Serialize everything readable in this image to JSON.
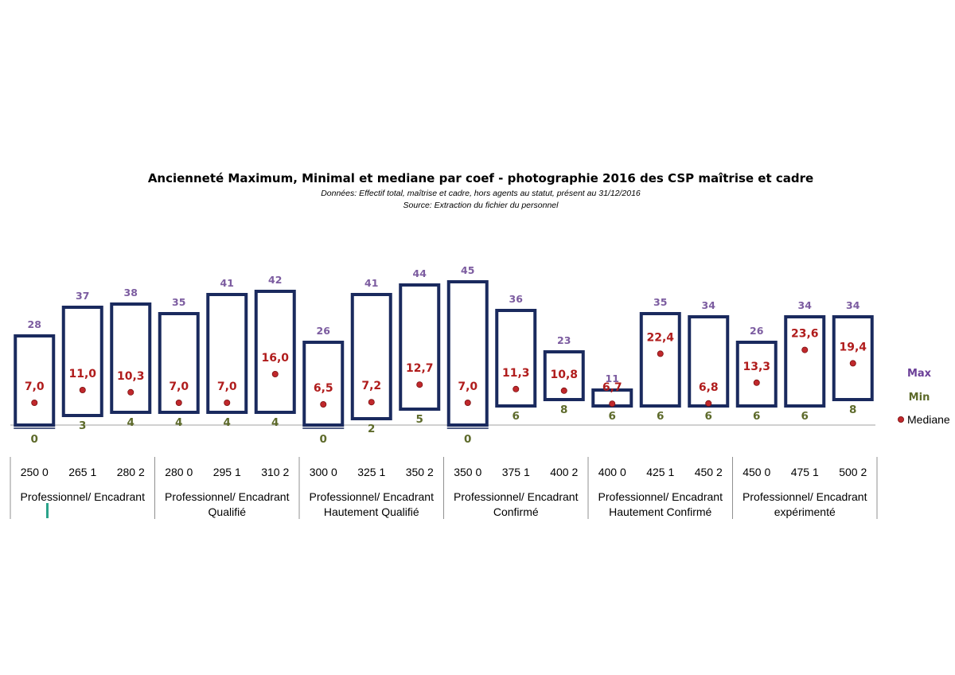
{
  "chart_data": {
    "type": "box",
    "title": "Ancienneté Maximum, Minimal et mediane par coef - photographie 2016 des CSP maîtrise et cadre",
    "subtitle_lines": [
      "Données: Effectif  total, maîtrise et cadre, hors agents au statut, présent au 31/12/2016",
      "Source: Extraction du fichier du personnel"
    ],
    "categories": [
      "250 0",
      "265 1",
      "280 2",
      "280 0",
      "295 1",
      "310 2",
      "300 0",
      "325 1",
      "350 2",
      "350 0",
      "375 1",
      "400 2",
      "400 0",
      "425 1",
      "450 2",
      "450 0",
      "475 1",
      "500 2"
    ],
    "groups": [
      {
        "lines": [
          "Professionnel/ Encadrant"
        ],
        "size": 3
      },
      {
        "lines": [
          "Professionnel/ Encadrant",
          "Qualifié"
        ],
        "size": 3
      },
      {
        "lines": [
          "Professionnel/ Encadrant",
          "Hautement Qualifié"
        ],
        "size": 3
      },
      {
        "lines": [
          "Professionnel/ Encadrant",
          "Confirmé"
        ],
        "size": 3
      },
      {
        "lines": [
          "Professionnel/ Encadrant",
          "Hautement Confirmé"
        ],
        "size": 3
      },
      {
        "lines": [
          "Professionnel/ Encadrant",
          "expérimenté"
        ],
        "size": 3
      }
    ],
    "series": [
      {
        "name": "Max",
        "values": [
          28,
          37,
          38,
          35,
          41,
          42,
          26,
          41,
          44,
          45,
          36,
          23,
          11,
          35,
          34,
          26,
          34,
          34
        ]
      },
      {
        "name": "Min",
        "values": [
          0,
          3,
          4,
          4,
          4,
          4,
          0,
          2,
          5,
          0,
          6,
          8,
          6,
          6,
          6,
          6,
          6,
          8
        ]
      },
      {
        "name": "Mediane",
        "values": [
          7.0,
          11.0,
          10.3,
          7.0,
          7.0,
          16.0,
          6.5,
          7.2,
          12.7,
          7.0,
          11.3,
          10.8,
          6.7,
          22.4,
          6.8,
          13.3,
          23.6,
          19.4
        ]
      }
    ],
    "median_labels": [
      "7,0",
      "11,0",
      "10,3",
      "7,0",
      "7,0",
      "16,0",
      "6,5",
      "7,2",
      "12,7",
      "7,0",
      "11,3",
      "10,8",
      "6,7",
      "22,4",
      "6,8",
      "13,3",
      "23,6",
      "19,4"
    ],
    "legend_position": "right",
    "grid": false,
    "colors": {
      "box_border": "#1a2a5e",
      "max_label": "#7c5ca0",
      "legend_max": "#6b3f98",
      "min_label": "#5d6a2a",
      "median_label": "#b01c1c",
      "median_marker": "#c0282c",
      "axis": "#a0a0a0",
      "separator": "#909090",
      "tick_mark": "#2aa38a"
    }
  }
}
